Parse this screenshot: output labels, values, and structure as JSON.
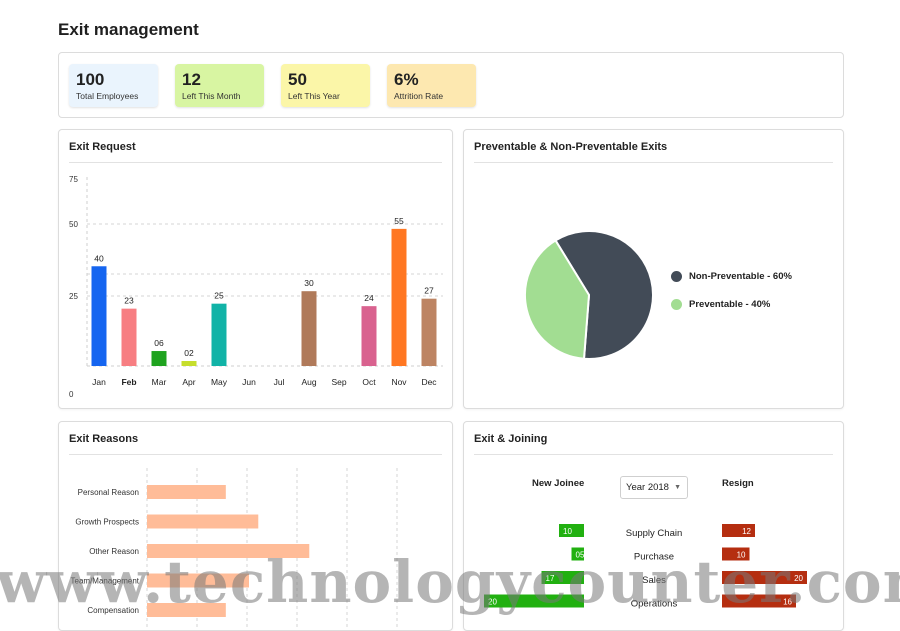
{
  "page": {
    "title": "Exit management"
  },
  "stats": [
    {
      "value": "100",
      "label": "Total Employees",
      "color": "#eaf4fd"
    },
    {
      "value": "12",
      "label": "Left This Month",
      "color": "#d8f5a2"
    },
    {
      "value": "50",
      "label": "Left This Year",
      "color": "#fbf6a8"
    },
    {
      "value": "6%",
      "label": "Attrition Rate",
      "color": "#fde8b0"
    }
  ],
  "exit_request": {
    "title": "Exit Request",
    "chart_data": {
      "type": "bar",
      "categories": [
        "Jan",
        "Feb",
        "Mar",
        "Apr",
        "May",
        "Jun",
        "Jul",
        "Aug",
        "Sep",
        "Oct",
        "Nov",
        "Dec"
      ],
      "values": [
        40,
        23,
        6,
        2,
        25,
        null,
        null,
        30,
        null,
        24,
        55,
        27
      ],
      "value_labels": [
        "40",
        "23",
        "06",
        "02",
        "25",
        "",
        "",
        "30",
        "",
        "24",
        "55",
        "27"
      ],
      "colors": [
        "#1565f0",
        "#f77e82",
        "#1fa31f",
        "#c6de2c",
        "#11b3a7",
        "",
        "",
        "#b07a5a",
        "",
        "#d9628f",
        "#ff7722",
        "#bd8463"
      ],
      "bold_categories": [
        "Feb"
      ],
      "y_ticks": [
        "0",
        "25",
        "50",
        "75"
      ],
      "ylim": [
        0,
        75
      ],
      "grid": true
    }
  },
  "preventable": {
    "title": "Preventable & Non-Preventable  Exits",
    "chart_data": {
      "type": "pie",
      "slices": [
        {
          "label": "Non-Preventable - 60%",
          "value": 60,
          "color": "#424b57"
        },
        {
          "label": "Preventable - 40%",
          "value": 40,
          "color": "#a2dd92"
        }
      ]
    }
  },
  "exit_reasons": {
    "title": "Exit Reasons",
    "chart_data": {
      "type": "bar",
      "orientation": "horizontal",
      "categories": [
        "Personal Reason",
        "Growth Prospects",
        "Other Reason",
        "Compensation",
        "Compensation"
      ],
      "display_labels": [
        "Personal Reason",
        "Growth Prospects",
        "Other Reason",
        "Team/Management",
        "Compensation"
      ],
      "values": [
        17,
        24,
        35,
        22,
        17
      ],
      "xlim": [
        0,
        55
      ],
      "color": "#ffbc98",
      "grid": true
    }
  },
  "exit_joining": {
    "title": "Exit & Joining",
    "new_joinee_label": "New Joinee",
    "resign_label": "Resign",
    "year_select": "Year 2018",
    "departments": [
      {
        "name": "Supply Chain",
        "joinee": "10",
        "resign": "12"
      },
      {
        "name": "Purchase",
        "joinee": "05",
        "resign": "10"
      },
      {
        "name": "Sales",
        "joinee": "17",
        "resign": "20"
      },
      {
        "name": "Operations",
        "joinee": "20",
        "resign": "16"
      }
    ],
    "joinee_values": [
      10,
      5,
      17,
      20
    ],
    "resign_values": [
      12,
      10,
      20,
      16
    ],
    "joinee_color": "#21b010",
    "resign_color": "#b52e10"
  },
  "watermark": "www.technologycounter.com"
}
